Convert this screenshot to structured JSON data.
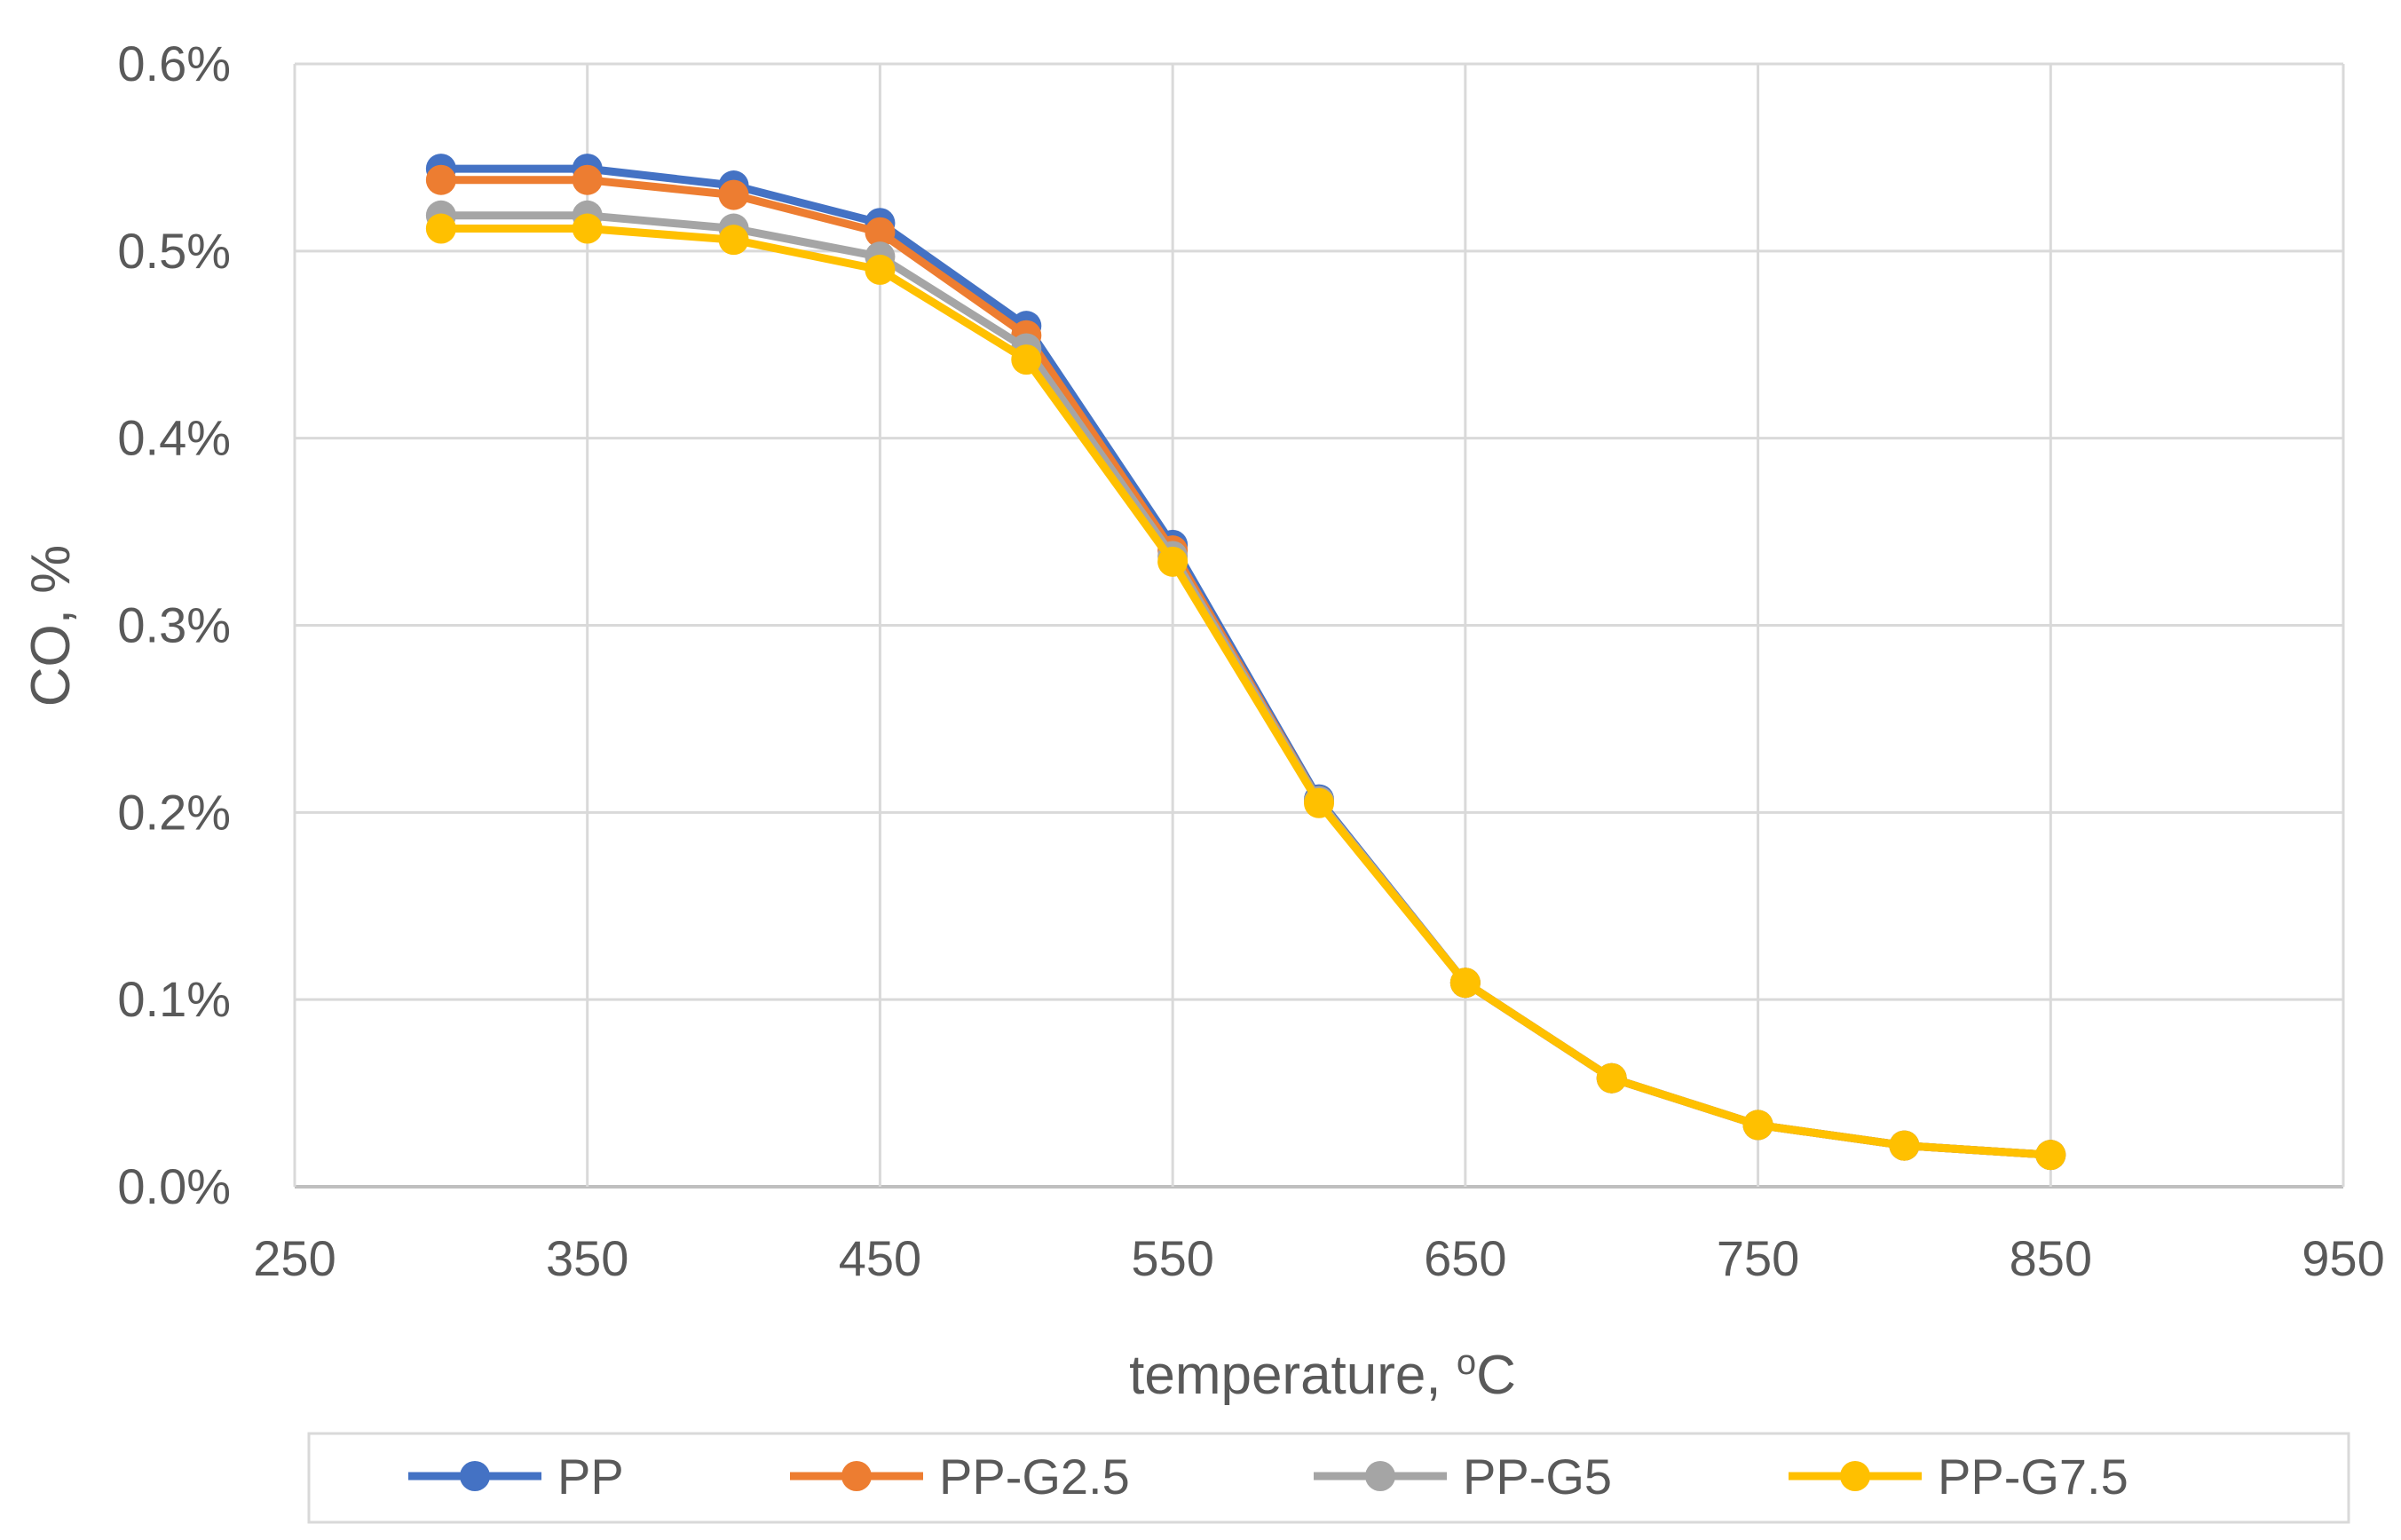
{
  "chart_data": {
    "type": "line",
    "title": "",
    "xlabel": "temperature, ",
    "xlabel_sup": "o",
    "xlabel_unit": "C",
    "ylabel": "CO, %",
    "xlim": [
      250,
      950
    ],
    "ylim": [
      0.0,
      0.6
    ],
    "x_ticks": [
      250,
      350,
      450,
      550,
      650,
      750,
      850,
      950
    ],
    "y_ticks": [
      "0.0%",
      "0.1%",
      "0.2%",
      "0.3%",
      "0.4%",
      "0.5%",
      "0.6%"
    ],
    "y_tick_values": [
      0.0,
      0.1,
      0.2,
      0.3,
      0.4,
      0.5,
      0.6
    ],
    "grid": true,
    "legend_position": "bottom",
    "x": [
      300,
      350,
      400,
      450,
      500,
      550,
      600,
      650,
      700,
      750,
      800,
      850
    ],
    "series": [
      {
        "name": "PP",
        "color": "#4472C4",
        "values": [
          0.544,
          0.544,
          0.535,
          0.515,
          0.46,
          0.343,
          0.207,
          0.109,
          0.058,
          0.033,
          0.022,
          0.017
        ]
      },
      {
        "name": "PP-G2.5",
        "color": "#ED7D31",
        "values": [
          0.538,
          0.538,
          0.53,
          0.51,
          0.455,
          0.34,
          0.206,
          0.109,
          0.058,
          0.033,
          0.022,
          0.017
        ]
      },
      {
        "name": "PP-G5",
        "color": "#A5A5A5",
        "values": [
          0.519,
          0.519,
          0.512,
          0.497,
          0.448,
          0.337,
          0.206,
          0.109,
          0.058,
          0.033,
          0.022,
          0.017
        ]
      },
      {
        "name": "PP-G7.5",
        "color": "#FFC000",
        "values": [
          0.512,
          0.512,
          0.506,
          0.49,
          0.442,
          0.334,
          0.205,
          0.109,
          0.058,
          0.033,
          0.022,
          0.017
        ]
      }
    ]
  }
}
